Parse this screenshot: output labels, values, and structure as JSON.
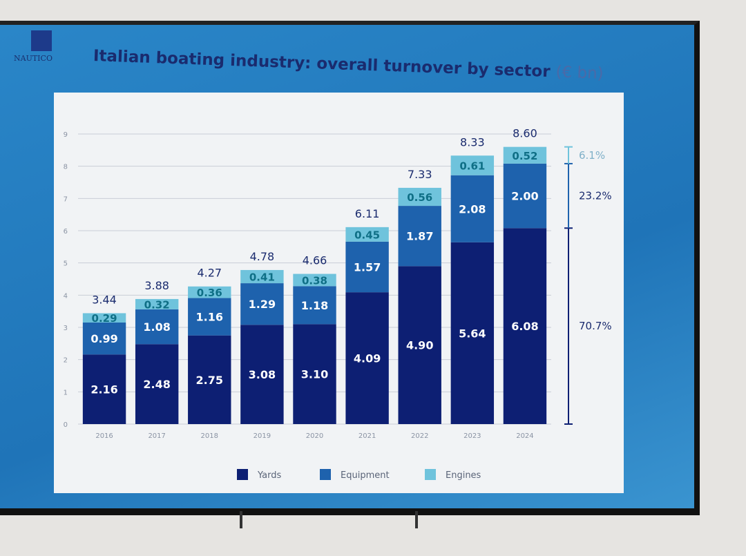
{
  "header": {
    "title": "Italian boating industry: overall turnover by sector",
    "unit": "(€ bn)",
    "logo_text": "NAUTICO"
  },
  "chart_data": {
    "type": "bar",
    "stacked": true,
    "title": "Italian boating industry: overall turnover by sector (€ bn)",
    "categories": [
      "2016",
      "2017",
      "2018",
      "2019",
      "2020",
      "2021",
      "2022",
      "2023",
      "2024"
    ],
    "series": [
      {
        "name": "Yards",
        "color": "#0d1f73",
        "values": [
          2.16,
          2.48,
          2.75,
          3.08,
          3.1,
          4.09,
          4.9,
          5.64,
          6.08
        ]
      },
      {
        "name": "Equipment",
        "color": "#1e62ad",
        "values": [
          0.99,
          1.08,
          1.16,
          1.29,
          1.18,
          1.57,
          1.87,
          2.08,
          2.0
        ]
      },
      {
        "name": "Engines",
        "color": "#6fc3dc",
        "values": [
          0.29,
          0.32,
          0.36,
          0.41,
          0.38,
          0.45,
          0.56,
          0.61,
          0.52
        ]
      }
    ],
    "totals": [
      "3.44",
      "3.88",
      "4.27",
      "4.78",
      "4.66",
      "6.11",
      "7.33",
      "8.33",
      "8.60"
    ],
    "labels": [
      [
        "2.16",
        "2.48",
        "2.75",
        "3.08",
        "3.10",
        "4.09",
        "4.90",
        "5.64",
        "6.08"
      ],
      [
        "0.99",
        "1.08",
        "1.16",
        "1.29",
        "1.18",
        "1.57",
        "1.87",
        "2.08",
        "2.00"
      ],
      [
        "0.29",
        "0.32",
        "0.36",
        "0.41",
        "0.38",
        "0.45",
        "0.56",
        "0.61",
        "0.52"
      ]
    ],
    "shares_2024": [
      {
        "name": "Yards",
        "label": "70.7%"
      },
      {
        "name": "Equipment",
        "label": "23.2%"
      },
      {
        "name": "Engines",
        "label": "6.1%"
      }
    ],
    "ylim": [
      0,
      9
    ],
    "yticks": [
      "0",
      "1",
      "2",
      "3",
      "4",
      "5",
      "6",
      "7",
      "8",
      "9"
    ],
    "grid": true,
    "legend": "bottom",
    "xlabel": "",
    "ylabel": ""
  }
}
